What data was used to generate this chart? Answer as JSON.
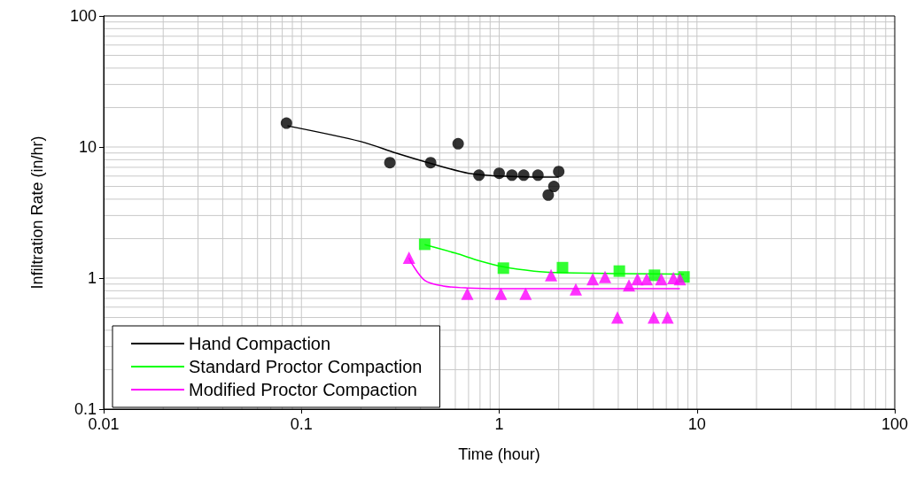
{
  "chart_data": {
    "type": "scatter",
    "xlabel": "Time (hour)",
    "ylabel": "Infiltration Rate (in/hr)",
    "log": "xy",
    "grid": true,
    "legend": "bottom left",
    "xlim": [
      0.01,
      100
    ],
    "xticks": [
      0.01,
      0.1,
      1,
      10,
      100
    ],
    "ylim": [
      0.1,
      100
    ],
    "yticks": [
      0.1,
      1,
      10,
      100
    ],
    "series": [
      {
        "marker": "circle",
        "color": "#000000",
        "x": [
          0.084,
          0.28,
          0.45,
          0.62,
          0.79,
          1.0,
          1.16,
          1.33,
          1.57,
          2.0,
          1.89,
          1.77
        ],
        "values": [
          15.2,
          7.6,
          7.6,
          10.6,
          6.1,
          6.3,
          6.1,
          6.1,
          6.1,
          6.5,
          5.0,
          4.3
        ]
      },
      {
        "marker": "square",
        "color": "#00ff00",
        "x": [
          0.42,
          1.05,
          2.09,
          4.05,
          6.1,
          8.6
        ],
        "values": [
          1.81,
          1.19,
          1.2,
          1.13,
          1.05,
          1.02
        ]
      },
      {
        "marker": "triangle",
        "color": "#ff00ff",
        "x": [
          0.35,
          0.69,
          1.02,
          1.36,
          1.83,
          2.44,
          2.97,
          3.43,
          3.96,
          4.53,
          5.0,
          5.57,
          6.05,
          6.6,
          7.1,
          7.6,
          8.2
        ],
        "values": [
          1.43,
          0.76,
          0.76,
          0.76,
          1.05,
          0.82,
          0.98,
          1.02,
          0.5,
          0.88,
          0.98,
          0.98,
          0.5,
          0.98,
          0.5,
          1.0,
          0.98
        ]
      },
      {
        "type": "line",
        "name": "Hand Compaction",
        "marker": "none",
        "color": "#000000",
        "x": [
          0.085,
          0.2,
          0.3,
          0.45,
          0.7,
          1.0,
          1.5,
          2.0
        ],
        "values": [
          14.5,
          11,
          9,
          7.5,
          6.3,
          6.0,
          5.9,
          5.9
        ]
      },
      {
        "type": "line",
        "name": "Standard Proctor Compaction",
        "marker": "none",
        "color": "#00ff00",
        "x": [
          0.42,
          0.6,
          0.8,
          1.05,
          1.5,
          2.0,
          4.0,
          8.6
        ],
        "values": [
          1.8,
          1.55,
          1.35,
          1.22,
          1.13,
          1.1,
          1.08,
          1.07
        ]
      },
      {
        "type": "line",
        "name": "Modified Proctor Compaction",
        "marker": "none",
        "color": "#ff00ff",
        "x": [
          0.35,
          0.36,
          0.42,
          0.52,
          0.69,
          1.0,
          8.2
        ],
        "values": [
          1.43,
          1.3,
          0.96,
          0.87,
          0.84,
          0.83,
          0.83
        ]
      }
    ]
  }
}
